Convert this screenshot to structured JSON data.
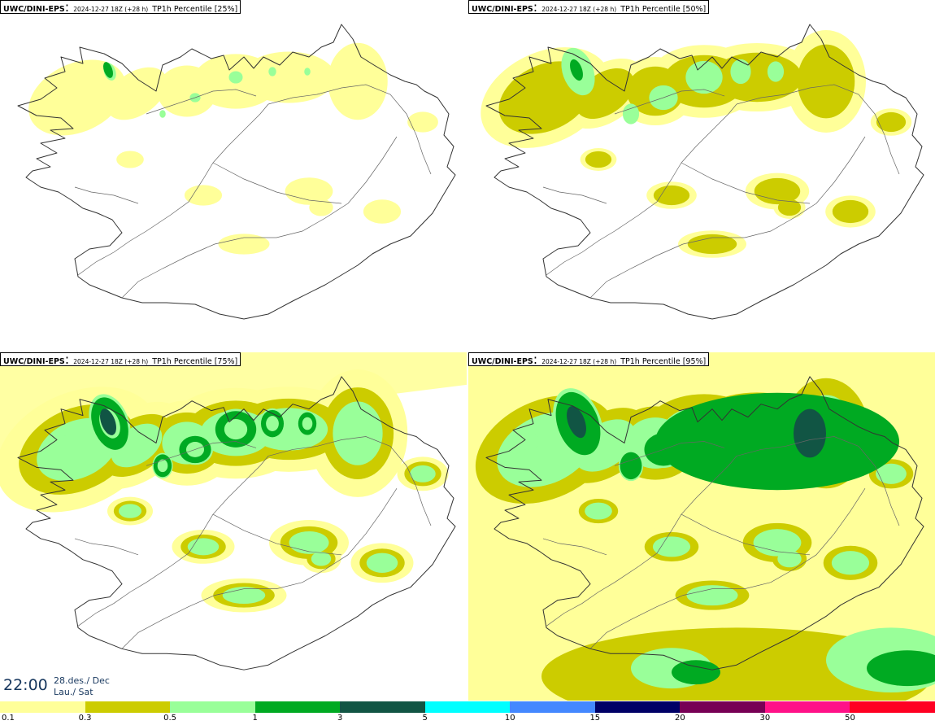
{
  "panels": [
    {
      "model": "UWC/DINI-EPS",
      "run": "2024-12-27 18Z (+28 h)",
      "variable": "TP1h Percentile [25%]",
      "coverage_level": 1
    },
    {
      "model": "UWC/DINI-EPS",
      "run": "2024-12-27 18Z (+28 h)",
      "variable": "TP1h Percentile [50%]",
      "coverage_level": 2
    },
    {
      "model": "UWC/DINI-EPS",
      "run": "2024-12-27 18Z (+28 h)",
      "variable": "TP1h Percentile [75%]",
      "coverage_level": 3
    },
    {
      "model": "UWC/DINI-EPS",
      "run": "2024-12-27 18Z (+28 h)",
      "variable": "TP1h Percentile [95%]",
      "coverage_level": 4
    }
  ],
  "timestamp": {
    "time": "22:00",
    "date": "28.des./ Dec",
    "day": "Lau./ Sat"
  },
  "legend": {
    "labels": [
      "0.1",
      "0.3",
      "0.5",
      "1",
      "3",
      "5",
      "10",
      "15",
      "20",
      "30",
      "50"
    ],
    "colors": [
      "#ffff99",
      "#cccc00",
      "#99ff99",
      "#00aa22",
      "#115544",
      "#00ffff",
      "#4488ff",
      "#000066",
      "#770055",
      "#ff1188",
      "#ff0022"
    ]
  },
  "colors": {
    "level1": "#ffff99",
    "level2": "#cccc00",
    "level3": "#99ff99",
    "level4": "#00aa22",
    "level5": "#115544",
    "coast": "#333333",
    "roads": "#666666"
  }
}
